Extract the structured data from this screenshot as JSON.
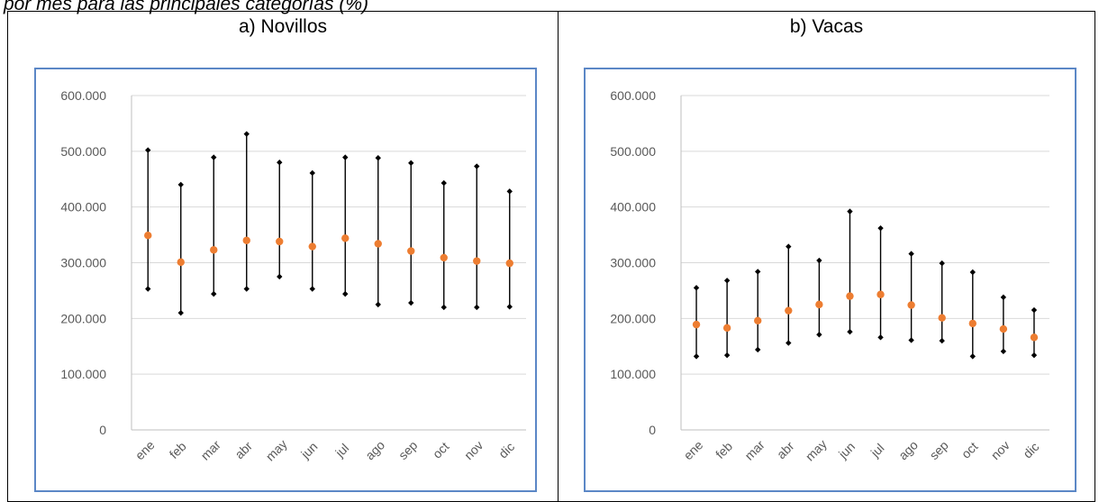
{
  "caption": "por mes para las principales categorías (%)",
  "chart_data": [
    {
      "type": "error-range",
      "title": "a) Novillos",
      "categories": [
        "ene",
        "feb",
        "mar",
        "abr",
        "may",
        "jun",
        "jul",
        "ago",
        "sep",
        "oct",
        "nov",
        "dic"
      ],
      "ylim": [
        0,
        600000
      ],
      "ytick_labels": [
        "0",
        "100.000",
        "200.000",
        "300.000",
        "400.000",
        "500.000",
        "600.000"
      ],
      "grid": true,
      "series": [
        {
          "values": [
            502000,
            440000,
            489000,
            531000,
            480000,
            461000,
            489000,
            488000,
            479000,
            443000,
            473000,
            428000
          ]
        },
        {
          "values": [
            253000,
            210000,
            244000,
            253000,
            275000,
            253000,
            244000,
            225000,
            228000,
            220000,
            220000,
            221000
          ]
        },
        {
          "values": [
            349000,
            301000,
            323000,
            340000,
            338000,
            329000,
            344000,
            334000,
            321000,
            309000,
            303000,
            299000
          ]
        }
      ],
      "colors": {
        "range": "#000000",
        "marker": "#ed7d31"
      }
    },
    {
      "type": "error-range",
      "title": "b) Vacas",
      "categories": [
        "ene",
        "feb",
        "mar",
        "abr",
        "may",
        "jun",
        "jul",
        "ago",
        "sep",
        "oct",
        "nov",
        "dic"
      ],
      "ylim": [
        0,
        600000
      ],
      "ytick_labels": [
        "0",
        "100.000",
        "200.000",
        "300.000",
        "400.000",
        "500.000",
        "600.000"
      ],
      "grid": true,
      "series": [
        {
          "values": [
            255000,
            268000,
            284000,
            329000,
            304000,
            392000,
            362000,
            316000,
            299000,
            283000,
            238000,
            215000
          ]
        },
        {
          "values": [
            132000,
            134000,
            144000,
            156000,
            171000,
            176000,
            166000,
            161000,
            160000,
            132000,
            141000,
            134000
          ]
        },
        {
          "values": [
            189000,
            183000,
            196000,
            214000,
            225000,
            240000,
            243000,
            224000,
            201000,
            191000,
            181000,
            166000
          ]
        }
      ],
      "colors": {
        "range": "#000000",
        "marker": "#ed7d31"
      }
    }
  ]
}
